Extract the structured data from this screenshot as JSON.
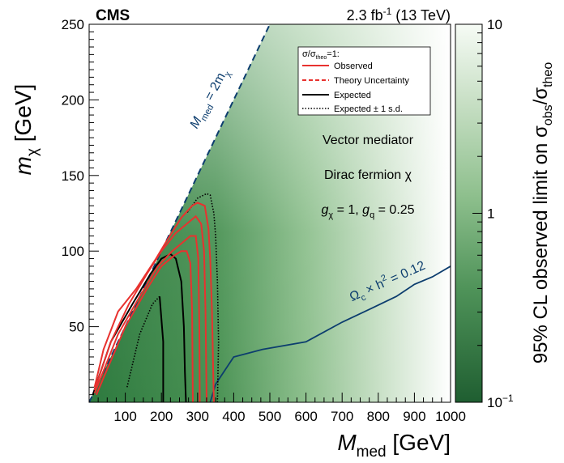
{
  "header": {
    "experiment": "CMS",
    "lumi": "2.3 fb",
    "lumi_sup": "-1",
    "energy": " (13 TeV)"
  },
  "axes": {
    "x_label_main": "M",
    "x_label_sub": "med",
    "x_label_unit": " [GeV]",
    "y_label_main": "m",
    "y_label_sub": "χ",
    "y_label_unit": " [GeV]",
    "z_label_a": "95% CL observed limit on σ",
    "z_label_sub1": "obs",
    "z_label_b": "/σ",
    "z_label_sub2": "theo"
  },
  "legend": {
    "header_a": "σ/σ",
    "header_sub": "theo",
    "header_b": "=1:",
    "entries": [
      {
        "label": "Observed",
        "color": "#e8322f",
        "style": "solid"
      },
      {
        "label": "Theory Uncertainty",
        "color": "#e8322f",
        "style": "dashed"
      },
      {
        "label": "Expected",
        "color": "#000000",
        "style": "solid"
      },
      {
        "label": "Expected ± 1 s.d.",
        "color": "#000000",
        "style": "dotted"
      }
    ]
  },
  "annotations": {
    "model_1": "Vector mediator",
    "model_2": "Dirac fermion χ",
    "coupling_g": "g",
    "coupling_chi": "χ",
    "coupling_mid": " = 1, ",
    "coupling_q": "q",
    "coupling_end": " = 0.25",
    "diag_a": "M",
    "diag_sub1": "med",
    "diag_b": " = 2m",
    "diag_sub2": "χ",
    "relic_a": "Ω",
    "relic_sub": "c",
    "relic_b": " × h",
    "relic_sup": "2",
    "relic_c": " = 0.12"
  },
  "chart_data": {
    "type": "heatmap",
    "xlim": [
      0,
      1000
    ],
    "ylim": [
      0,
      250
    ],
    "zlim": [
      0.1,
      10
    ],
    "z_scale": "log",
    "x_ticks": [
      100,
      200,
      300,
      400,
      500,
      600,
      700,
      800,
      900,
      1000
    ],
    "y_ticks": [
      50,
      100,
      150,
      200,
      250
    ],
    "z_ticks": [
      {
        "value": 10,
        "label": "10"
      },
      {
        "value": 1,
        "label": "1"
      },
      {
        "value": 0.1,
        "label": "10",
        "sup": "−1"
      }
    ],
    "colors": {
      "high": "#ffffff",
      "low": "#1f5e31",
      "mid": "#9cc69a",
      "relic": "#0c3d6e",
      "diagonal": "#0c3d6e"
    },
    "observed_outer": [
      [
        15,
        10
      ],
      [
        40,
        35
      ],
      [
        80,
        60
      ],
      [
        130,
        75
      ],
      [
        185,
        95
      ],
      [
        215,
        107
      ],
      [
        255,
        122
      ],
      [
        285,
        130
      ],
      [
        300,
        132
      ],
      [
        320,
        130
      ],
      [
        330,
        115
      ],
      [
        335,
        95
      ],
      [
        340,
        60
      ],
      [
        345,
        0
      ]
    ],
    "observed_mid": [
      [
        15,
        8
      ],
      [
        60,
        40
      ],
      [
        110,
        65
      ],
      [
        160,
        85
      ],
      [
        200,
        100
      ],
      [
        240,
        112
      ],
      [
        270,
        118
      ],
      [
        295,
        123
      ],
      [
        310,
        118
      ],
      [
        318,
        100
      ],
      [
        322,
        60
      ],
      [
        325,
        0
      ]
    ],
    "observed_inner": [
      [
        15,
        6
      ],
      [
        80,
        45
      ],
      [
        140,
        70
      ],
      [
        190,
        90
      ],
      [
        230,
        100
      ],
      [
        260,
        106
      ],
      [
        280,
        110
      ],
      [
        295,
        110
      ],
      [
        302,
        95
      ],
      [
        305,
        50
      ],
      [
        306,
        0
      ]
    ],
    "observed_innermost": [
      [
        20,
        5
      ],
      [
        100,
        50
      ],
      [
        160,
        75
      ],
      [
        200,
        90
      ],
      [
        235,
        97
      ],
      [
        255,
        100
      ],
      [
        270,
        100
      ],
      [
        280,
        92
      ],
      [
        285,
        60
      ],
      [
        287,
        0
      ]
    ],
    "expected": [
      [
        10,
        5
      ],
      [
        60,
        40
      ],
      [
        120,
        65
      ],
      [
        170,
        85
      ],
      [
        200,
        95
      ],
      [
        225,
        98
      ],
      [
        240,
        95
      ],
      [
        255,
        80
      ],
      [
        262,
        50
      ],
      [
        265,
        20
      ],
      [
        268,
        0
      ]
    ],
    "expected_inner": [
      [
        200,
        50
      ],
      [
        170,
        70
      ],
      [
        160,
        75
      ]
    ],
    "expected_inner_drop": [
      [
        195,
        70
      ],
      [
        205,
        40
      ],
      [
        205,
        20
      ],
      [
        205,
        0
      ]
    ],
    "expected_plus": [
      [
        355,
        0
      ],
      [
        358,
        40
      ],
      [
        355,
        80
      ],
      [
        350,
        110
      ],
      [
        345,
        125
      ],
      [
        335,
        137
      ],
      [
        325,
        138
      ],
      [
        300,
        135
      ],
      [
        270,
        125
      ]
    ],
    "expected_minus": [
      [
        105,
        10
      ],
      [
        140,
        45
      ],
      [
        175,
        65
      ],
      [
        195,
        70
      ]
    ],
    "relic_density": [
      [
        335,
        0
      ],
      [
        350,
        12
      ],
      [
        400,
        30
      ],
      [
        480,
        35
      ],
      [
        600,
        40
      ],
      [
        700,
        53
      ],
      [
        780,
        62
      ],
      [
        850,
        70
      ],
      [
        900,
        78
      ],
      [
        950,
        83
      ],
      [
        1000,
        90
      ]
    ],
    "diagonal": [
      [
        0,
        0
      ],
      [
        500,
        250
      ]
    ]
  }
}
